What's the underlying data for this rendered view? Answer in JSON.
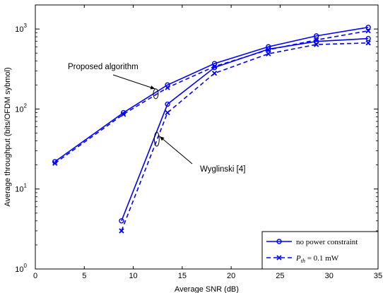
{
  "chart_data": {
    "type": "line",
    "xlabel": "Average SNR (dB)",
    "ylabel": "Average throughput (bits/OFDM sybmol)",
    "xlim": [
      0,
      35
    ],
    "ylim": [
      1,
      2000
    ],
    "yscale": "log",
    "grid": false,
    "legend_position": "bottom-right",
    "x_ticks": [
      "0",
      "5",
      "10",
      "15",
      "20",
      "25",
      "30",
      "35"
    ],
    "y_ticks": [
      {
        "base": "10",
        "exp": "0"
      },
      {
        "base": "10",
        "exp": "1"
      },
      {
        "base": "10",
        "exp": "2"
      },
      {
        "base": "10",
        "exp": "3"
      }
    ],
    "color": "#0000ff",
    "legend": [
      {
        "label": "no power constraint",
        "marker": "circle",
        "dash": "solid"
      },
      {
        "label_main": "P",
        "label_sub": "th",
        "label_rest": " = 0.1 mW",
        "marker": "x",
        "dash": "dashed"
      }
    ],
    "series": [
      {
        "group": "Proposed algorithm",
        "marker": "circle",
        "dash": "solid",
        "x": [
          2,
          9,
          13.5,
          18.3,
          23.8,
          28.7,
          34
        ],
        "y": [
          22,
          90,
          200,
          370,
          600,
          820,
          1050
        ]
      },
      {
        "group": "Proposed algorithm",
        "marker": "x",
        "dash": "dashed",
        "x": [
          2,
          9,
          13.5,
          18.3,
          23.8,
          28.7,
          34
        ],
        "y": [
          21,
          86,
          185,
          340,
          550,
          730,
          950
        ]
      },
      {
        "group": "Wyglinski [4]",
        "marker": "circle",
        "dash": "solid",
        "x": [
          8.8,
          13.5,
          18.3,
          23.8,
          28.7,
          34
        ],
        "y": [
          4,
          115,
          330,
          560,
          700,
          760
        ]
      },
      {
        "group": "Wyglinski [4]",
        "marker": "x",
        "dash": "dashed",
        "x": [
          8.8,
          13.5,
          18.3,
          23.8,
          28.7,
          34
        ],
        "y": [
          3,
          90,
          280,
          490,
          640,
          670
        ]
      }
    ],
    "annotations": [
      {
        "text": "Proposed algorithm",
        "ellipse_x": 12.3,
        "ellipse_y": 155
      },
      {
        "text": "Wyglinski [4]",
        "ellipse_x": 12.4,
        "ellipse_y": 42
      }
    ]
  }
}
